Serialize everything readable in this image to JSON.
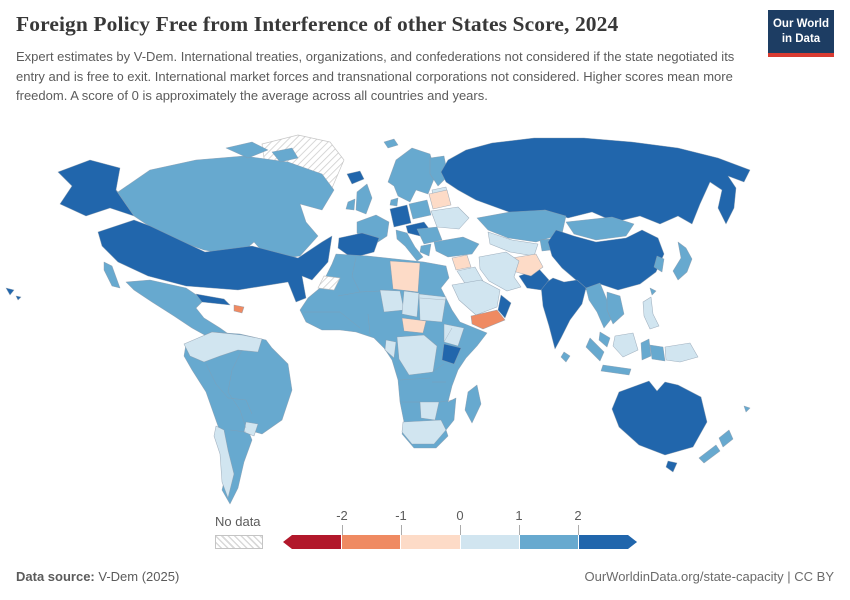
{
  "header": {
    "title": "Foreign Policy Free from Interference of other States Score, 2024",
    "subtitle": "Expert estimates by V-Dem. International treaties, organizations, and confederations not considered if the state negotiated its entry and is free to exit. International market forces and transnational corporations not considered. Higher scores mean more freedom. A score of 0 is approximately the average across all countries and years."
  },
  "logo": {
    "line1": "Our World",
    "line2": "in Data",
    "bg_color": "#1d3d63",
    "accent_color": "#d93b31"
  },
  "footer": {
    "source_label": "Data source:",
    "source_value": " V-Dem (2025)",
    "right_text": "OurWorldinData.org/state-capacity | CC BY"
  },
  "chart_data": {
    "type": "heatmap",
    "subtype": "world-choropleth",
    "title": "Foreign Policy Free from Interference of other States Score, 2024",
    "year": "2024",
    "legend": {
      "no_data_label": "No data",
      "tick_labels": [
        "-2",
        "-1",
        "0",
        "1",
        "2"
      ],
      "colors": [
        "#b2182b",
        "#ef8a62",
        "#fddbc7",
        "#d1e5f0",
        "#67a9cf",
        "#2166ac"
      ],
      "arrow_ends": true
    },
    "bin_colors": {
      "b0": "#b2182b",
      "b1": "#ef8a62",
      "b2": "#fddbc7",
      "b3": "#d1e5f0",
      "b4": "#67a9cf",
      "b5": "#2166ac"
    },
    "bin_ranges": {
      "b0": "below -2",
      "b1": "-2 to -1",
      "b2": "-1 to 0",
      "b3": "0 to 1",
      "b4": "1 to 2",
      "b5": "above 2",
      "no-data": "No data"
    },
    "regions": [
      {
        "name": "greenland",
        "bin": "no-data"
      },
      {
        "name": "iceland",
        "bin": "b5"
      },
      {
        "name": "alaska",
        "bin": "b5"
      },
      {
        "name": "canada",
        "bin": "b4"
      },
      {
        "name": "usa",
        "bin": "b5"
      },
      {
        "name": "hawaii",
        "bin": "b5"
      },
      {
        "name": "mexico",
        "bin": "b4"
      },
      {
        "name": "cuba",
        "bin": "b5"
      },
      {
        "name": "hispaniola",
        "bin": "b1"
      },
      {
        "name": "south-america",
        "bin": "b4"
      },
      {
        "name": "colombia-venezuela-guianas",
        "bin": "b3"
      },
      {
        "name": "paraguay",
        "bin": "b3"
      },
      {
        "name": "chile",
        "bin": "b3"
      },
      {
        "name": "uk",
        "bin": "b4"
      },
      {
        "name": "ireland",
        "bin": "b4"
      },
      {
        "name": "scandinavia",
        "bin": "b4"
      },
      {
        "name": "finland",
        "bin": "b4"
      },
      {
        "name": "baltics",
        "bin": "b3"
      },
      {
        "name": "denmark",
        "bin": "b4"
      },
      {
        "name": "germany",
        "bin": "b5"
      },
      {
        "name": "france",
        "bin": "b4"
      },
      {
        "name": "spain",
        "bin": "b5"
      },
      {
        "name": "italy",
        "bin": "b4"
      },
      {
        "name": "central-europe",
        "bin": "b5"
      },
      {
        "name": "poland",
        "bin": "b4"
      },
      {
        "name": "belarus",
        "bin": "b2"
      },
      {
        "name": "ukraine",
        "bin": "b3"
      },
      {
        "name": "romania-balkans",
        "bin": "b4"
      },
      {
        "name": "greece",
        "bin": "b4"
      },
      {
        "name": "turkey",
        "bin": "b4"
      },
      {
        "name": "russia",
        "bin": "b5"
      },
      {
        "name": "kazakhstan",
        "bin": "b4"
      },
      {
        "name": "uzbekistan-turkmenistan",
        "bin": "b3"
      },
      {
        "name": "kyrgyzstan-tajikistan",
        "bin": "b4"
      },
      {
        "name": "mongolia",
        "bin": "b4"
      },
      {
        "name": "china",
        "bin": "b5"
      },
      {
        "name": "korea",
        "bin": "b4"
      },
      {
        "name": "japan",
        "bin": "b4"
      },
      {
        "name": "taiwan",
        "bin": "b4"
      },
      {
        "name": "india",
        "bin": "b5"
      },
      {
        "name": "pakistan",
        "bin": "b5"
      },
      {
        "name": "afghanistan",
        "bin": "b2"
      },
      {
        "name": "iran",
        "bin": "b3"
      },
      {
        "name": "sri-lanka",
        "bin": "b4"
      },
      {
        "name": "syria-levant",
        "bin": "b2"
      },
      {
        "name": "iraq",
        "bin": "b3"
      },
      {
        "name": "saudi-arabia",
        "bin": "b3"
      },
      {
        "name": "yemen",
        "bin": "b1"
      },
      {
        "name": "oman",
        "bin": "b5"
      },
      {
        "name": "africa-mainland",
        "bin": "b4"
      },
      {
        "name": "libya",
        "bin": "b2"
      },
      {
        "name": "western-sahara",
        "bin": "no-data"
      },
      {
        "name": "niger",
        "bin": "b3"
      },
      {
        "name": "chad",
        "bin": "b3"
      },
      {
        "name": "sudan",
        "bin": "b3"
      },
      {
        "name": "ethiopia",
        "bin": "b3"
      },
      {
        "name": "central-african-republic",
        "bin": "b2"
      },
      {
        "name": "dr-congo",
        "bin": "b3"
      },
      {
        "name": "gabon-congo",
        "bin": "b3"
      },
      {
        "name": "kenya",
        "bin": "b5"
      },
      {
        "name": "botswana",
        "bin": "b3"
      },
      {
        "name": "south-africa",
        "bin": "b3"
      },
      {
        "name": "madagascar",
        "bin": "b4"
      },
      {
        "name": "myanmar-thailand",
        "bin": "b4"
      },
      {
        "name": "indochina",
        "bin": "b4"
      },
      {
        "name": "malaysia",
        "bin": "b4"
      },
      {
        "name": "sumatra",
        "bin": "b4"
      },
      {
        "name": "borneo",
        "bin": "b3"
      },
      {
        "name": "java",
        "bin": "b4"
      },
      {
        "name": "sulawesi",
        "bin": "b4"
      },
      {
        "name": "philippines",
        "bin": "b3"
      },
      {
        "name": "west-papua",
        "bin": "b4"
      },
      {
        "name": "papua-new-guinea",
        "bin": "b3"
      },
      {
        "name": "australia",
        "bin": "b5"
      },
      {
        "name": "tasmania",
        "bin": "b5"
      },
      {
        "name": "new-zealand",
        "bin": "b4"
      },
      {
        "name": "fiji",
        "bin": "b4"
      }
    ]
  }
}
